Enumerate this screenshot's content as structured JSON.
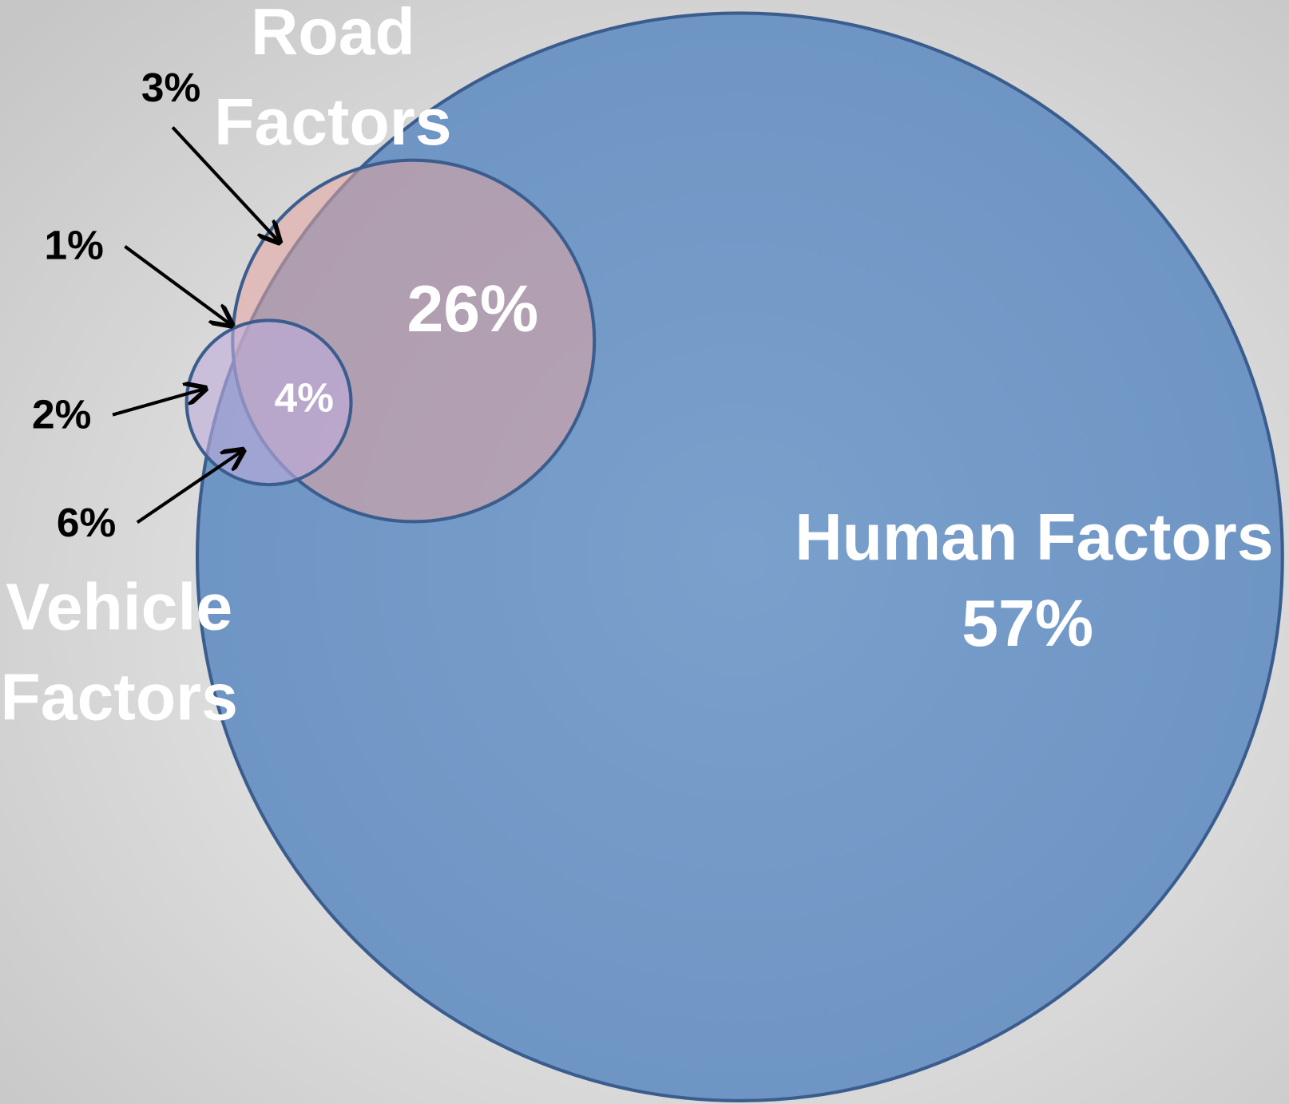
{
  "sets": [
    {
      "name_lines": [
        "Human Factors"
      ],
      "value": "57%"
    },
    {
      "name_lines": [
        "Road",
        "Factors"
      ],
      "value": "26%"
    },
    {
      "name_lines": [
        "Vehicle",
        "Factors"
      ]
    }
  ],
  "regions": [
    {
      "label": "4%"
    },
    {
      "label": "3%"
    },
    {
      "label": "1%"
    },
    {
      "label": "2%"
    },
    {
      "label": "6%"
    }
  ]
}
